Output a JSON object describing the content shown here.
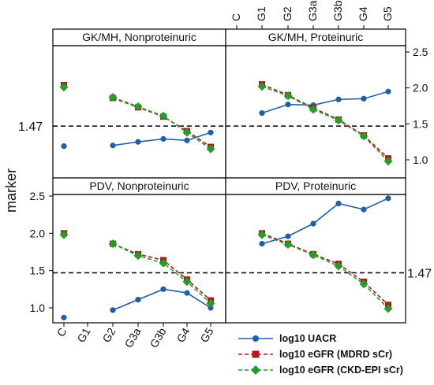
{
  "chart_data": {
    "type": "line",
    "ylabel": "marker",
    "categories": [
      "C",
      "G1",
      "G2",
      "G3a",
      "G3b",
      "G4",
      "G5"
    ],
    "reference_line": {
      "value": 1.47,
      "label": "1.47",
      "style": "dashed"
    },
    "y_ticks": [
      "1.0",
      "1.5",
      "2.0",
      "2.5"
    ],
    "ylim": [
      0.8,
      2.6
    ],
    "grid": false,
    "legend_position": "bottom-right",
    "series_styles": [
      {
        "name": "log10 UACR",
        "color": "#1f5fa6",
        "marker": "circle",
        "dash": "solid"
      },
      {
        "name": "log10 eGFR (MDRD sCr)",
        "color": "#b01c1c",
        "marker": "square",
        "dash": "dashed"
      },
      {
        "name": "log10 eGFR (CKD-EPI sCr)",
        "color": "#2a9a2a",
        "marker": "diamond",
        "dash": "dashed"
      }
    ],
    "panels": [
      {
        "title": "GK/MH, Nonproteinuric",
        "series": [
          {
            "name": "log10 UACR",
            "values": [
              1.19,
              null,
              1.2,
              1.25,
              1.29,
              1.27,
              1.38
            ]
          },
          {
            "name": "log10 eGFR (MDRD sCr)",
            "values": [
              2.04,
              null,
              1.86,
              1.73,
              1.6,
              1.4,
              1.18
            ]
          },
          {
            "name": "log10 eGFR (CKD-EPI sCr)",
            "values": [
              2.01,
              null,
              1.87,
              1.74,
              1.61,
              1.38,
              1.15
            ]
          }
        ]
      },
      {
        "title": "GK/MH, Proteinuric",
        "series": [
          {
            "name": "log10 UACR",
            "values": [
              null,
              1.65,
              1.77,
              1.76,
              1.84,
              1.85,
              1.95
            ]
          },
          {
            "name": "log10 eGFR (MDRD sCr)",
            "values": [
              null,
              2.05,
              1.9,
              1.72,
              1.56,
              1.34,
              1.02
            ]
          },
          {
            "name": "log10 eGFR (CKD-EPI sCr)",
            "values": [
              null,
              2.02,
              1.89,
              1.7,
              1.55,
              1.33,
              0.98
            ]
          }
        ]
      },
      {
        "title": "PDV, Nonproteinuric",
        "series": [
          {
            "name": "log10 UACR",
            "values": [
              0.87,
              null,
              0.97,
              1.11,
              1.25,
              1.2,
              1.0
            ]
          },
          {
            "name": "log10 eGFR (MDRD sCr)",
            "values": [
              2.0,
              null,
              1.86,
              1.72,
              1.64,
              1.38,
              1.1
            ]
          },
          {
            "name": "log10 eGFR (CKD-EPI sCr)",
            "values": [
              1.98,
              null,
              1.86,
              1.7,
              1.6,
              1.35,
              1.06
            ]
          }
        ]
      },
      {
        "title": "PDV, Proteinuric",
        "series": [
          {
            "name": "log10 UACR",
            "values": [
              null,
              1.86,
              1.96,
              2.13,
              2.4,
              2.32,
              2.47
            ]
          },
          {
            "name": "log10 eGFR (MDRD sCr)",
            "values": [
              null,
              2.0,
              1.86,
              1.72,
              1.59,
              1.35,
              1.04
            ]
          },
          {
            "name": "log10 eGFR (CKD-EPI sCr)",
            "values": [
              null,
              1.98,
              1.85,
              1.71,
              1.56,
              1.32,
              0.99
            ]
          }
        ]
      }
    ]
  }
}
